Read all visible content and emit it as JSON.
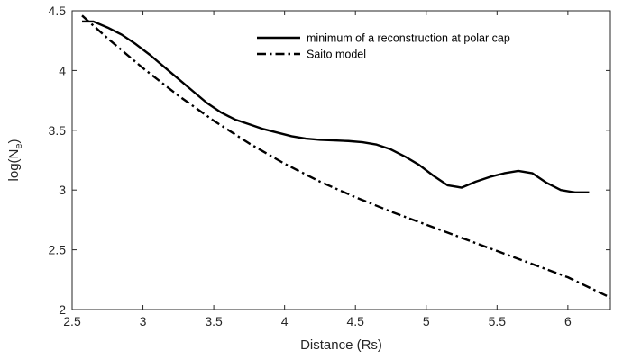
{
  "chart_data": {
    "type": "line",
    "title": "",
    "xlabel": "Distance (Rs)",
    "ylabel": {
      "text": "log(N",
      "sub": "e",
      "close": ")"
    },
    "xlim": [
      2.5,
      6.3
    ],
    "ylim": [
      2,
      4.5
    ],
    "xticks": [
      "2.5",
      "3",
      "3.5",
      "4",
      "4.5",
      "5",
      "5.5",
      "6"
    ],
    "yticks": [
      "2",
      "2.5",
      "3",
      "3.5",
      "4",
      "4.5"
    ],
    "grid": false,
    "legend_position": "top-right",
    "series": [
      {
        "name": "minimum of a reconstruction at polar cap",
        "style": "solid",
        "color": "#000000",
        "x": [
          2.57,
          2.65,
          2.75,
          2.85,
          2.95,
          3.05,
          3.15,
          3.25,
          3.35,
          3.45,
          3.55,
          3.65,
          3.75,
          3.85,
          3.95,
          4.05,
          4.15,
          4.25,
          4.35,
          4.45,
          4.55,
          4.65,
          4.75,
          4.85,
          4.95,
          5.05,
          5.15,
          5.25,
          5.35,
          5.45,
          5.55,
          5.65,
          5.75,
          5.85,
          5.95,
          6.05,
          6.15
        ],
        "y": [
          4.41,
          4.41,
          4.36,
          4.3,
          4.22,
          4.13,
          4.03,
          3.93,
          3.83,
          3.73,
          3.65,
          3.59,
          3.55,
          3.51,
          3.48,
          3.45,
          3.43,
          3.42,
          3.415,
          3.41,
          3.4,
          3.38,
          3.34,
          3.28,
          3.21,
          3.12,
          3.04,
          3.02,
          3.07,
          3.11,
          3.14,
          3.16,
          3.14,
          3.06,
          3.0,
          2.98,
          2.98
        ]
      },
      {
        "name": "Saito model",
        "style": "dashdot",
        "color": "#000000",
        "x": [
          2.57,
          2.75,
          3.0,
          3.25,
          3.5,
          3.75,
          4.0,
          4.25,
          4.5,
          4.75,
          5.0,
          5.25,
          5.5,
          5.75,
          6.0,
          6.3
        ],
        "y": [
          4.46,
          4.27,
          4.02,
          3.79,
          3.58,
          3.39,
          3.22,
          3.07,
          2.94,
          2.82,
          2.71,
          2.6,
          2.49,
          2.38,
          2.27,
          2.1
        ]
      }
    ]
  }
}
